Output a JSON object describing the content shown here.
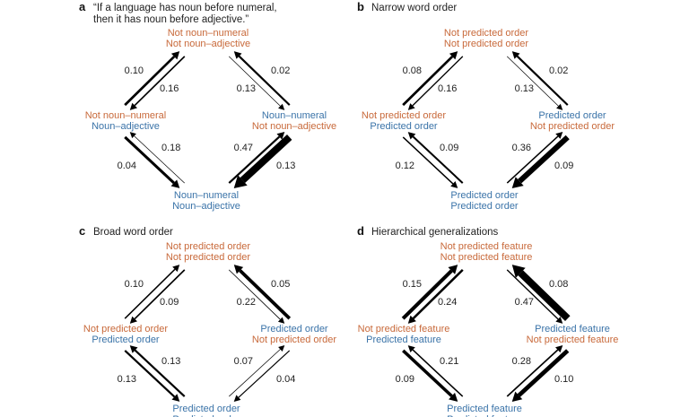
{
  "colors": {
    "not": "#c8693a",
    "predicted": "#3a73a8",
    "arrow": "#000000"
  },
  "panels": [
    {
      "letter": "a",
      "title": [
        "“If a language has noun before numeral,",
        "then it has noun before adjective.”"
      ],
      "nodes": {
        "top": [
          "Not noun–numeral",
          "Not noun–adjective"
        ],
        "left": [
          "Not noun–numeral",
          "Noun–adjective"
        ],
        "right": [
          "Noun–numeral",
          "Not noun–adjective"
        ],
        "bottom": [
          "Noun–numeral",
          "Noun–adjective"
        ]
      },
      "edges": {
        "top_to_left": "0.10",
        "left_to_top": "0.16",
        "top_to_right": "0.02",
        "right_to_top": "0.13",
        "left_to_bottom": "0.18",
        "bottom_to_left": "0.04",
        "right_to_bottom": "0.47",
        "bottom_to_right": "0.13"
      }
    },
    {
      "letter": "b",
      "title": [
        "Narrow word order"
      ],
      "nodes": {
        "top": [
          "Not predicted order",
          "Not predicted order"
        ],
        "left": [
          "Not predicted order",
          "Predicted order"
        ],
        "right": [
          "Predicted order",
          "Not predicted order"
        ],
        "bottom": [
          "Predicted order",
          "Predicted order"
        ]
      },
      "edges": {
        "top_to_left": "0.08",
        "left_to_top": "0.16",
        "top_to_right": "0.02",
        "right_to_top": "0.13",
        "left_to_bottom": "0.09",
        "bottom_to_left": "0.12",
        "right_to_bottom": "0.36",
        "bottom_to_right": "0.09"
      }
    },
    {
      "letter": "c",
      "title": [
        "Broad word order"
      ],
      "nodes": {
        "top": [
          "Not predicted order",
          "Not predicted order"
        ],
        "left": [
          "Not predicted order",
          "Predicted order"
        ],
        "right": [
          "Predicted order",
          "Not predicted order"
        ],
        "bottom": [
          "Predicted order",
          "Predicted order"
        ]
      },
      "edges": {
        "top_to_left": "0.10",
        "left_to_top": "0.09",
        "top_to_right": "0.05",
        "right_to_top": "0.22",
        "left_to_bottom": "0.13",
        "bottom_to_left": "0.13",
        "right_to_bottom": "0.07",
        "bottom_to_right": "0.04"
      }
    },
    {
      "letter": "d",
      "title": [
        "Hierarchical generalizations"
      ],
      "nodes": {
        "top": [
          "Not predicted feature",
          "Not predicted feature"
        ],
        "left": [
          "Not predicted feature",
          "Predicted feature"
        ],
        "right": [
          "Predicted feature",
          "Not predicted feature"
        ],
        "bottom": [
          "Predicted feature",
          "Predicted feature"
        ]
      },
      "edges": {
        "top_to_left": "0.15",
        "left_to_top": "0.24",
        "top_to_right": "0.08",
        "right_to_top": "0.47",
        "left_to_bottom": "0.21",
        "bottom_to_left": "0.09",
        "right_to_bottom": "0.28",
        "bottom_to_right": "0.10"
      }
    }
  ]
}
